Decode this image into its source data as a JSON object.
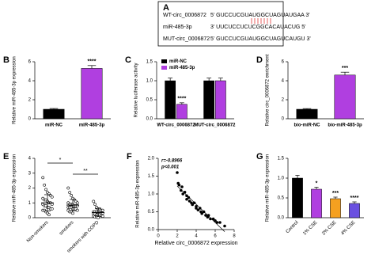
{
  "panel_a": {
    "panel": "A",
    "rows": [
      {
        "name": "WT-circ_0006872",
        "sequence": "5' GUCCUCGUAUGGCUAGUAUGAA 3'"
      },
      {
        "name": "miR-485-3p",
        "sequence": "3' UUCUCCUCUCGGCACAUACUG 5'"
      },
      {
        "name": "MUT-circ_0006872",
        "sequence": "5' GUCCUCGUAUGGCUAGUCAUGU 3'"
      }
    ]
  },
  "chart_data": [
    {
      "type": "bar",
      "panel": "B",
      "ylabel": "Relative miR-485-3p expression",
      "categories": [
        "miR-NC",
        "miR-485-3p"
      ],
      "values": [
        1.0,
        5.3
      ],
      "errors": [
        0.08,
        0.3
      ],
      "colors": [
        "#000000",
        "#b03fe0"
      ],
      "significance": [
        null,
        "****"
      ],
      "ylim": [
        0,
        6
      ],
      "yticks": [
        0,
        2,
        4,
        6
      ],
      "rotate_labels": false
    },
    {
      "type": "grouped_bar",
      "panel": "C",
      "ylabel": "Relative luciferase activity",
      "categories": [
        "WT-circ_0006872",
        "MUT-circ_0006872"
      ],
      "series": [
        {
          "name": "miR-NC",
          "color": "#000000",
          "values": [
            1.0,
            1.0
          ],
          "errors": [
            0.07,
            0.07
          ],
          "significance": [
            null,
            null
          ]
        },
        {
          "name": "miR-485-3p",
          "color": "#b03fe0",
          "values": [
            0.38,
            1.0
          ],
          "errors": [
            0.04,
            0.07
          ],
          "significance": [
            "****",
            null
          ]
        }
      ],
      "ylim": [
        0,
        1.5
      ],
      "yticks": [
        {
          "value": 0,
          "label": "0.0"
        },
        0.5,
        {
          "value": 1,
          "label": "1.0"
        },
        1.5
      ],
      "legend": "top-left"
    },
    {
      "type": "bar",
      "panel": "D",
      "ylabel": "Relative circ_0006872 enrichment",
      "categories": [
        "bio-miR-NC",
        "bio-miR-485-3p"
      ],
      "values": [
        1.0,
        4.6
      ],
      "errors": [
        0.07,
        0.3
      ],
      "colors": [
        "#000000",
        "#b03fe0"
      ],
      "significance": [
        null,
        "***"
      ],
      "ylim": [
        0,
        6
      ],
      "yticks": [
        0,
        2,
        4,
        6
      ],
      "rotate_labels": false
    },
    {
      "type": "strip",
      "panel": "E",
      "ylabel": "Relative miR-485-3p expression",
      "categories": [
        "Non-smokers",
        "smokers",
        "smokers with COPD"
      ],
      "groups": [
        {
          "values": [
            2.7,
            2.2,
            1.9,
            1.7,
            1.6,
            1.5,
            1.4,
            1.3,
            1.2,
            1.2,
            1.1,
            1.0,
            1.0,
            0.9,
            0.9,
            0.8,
            0.8,
            0.7,
            0.7,
            0.6,
            0.6,
            0.5,
            0.5,
            0.4,
            0.3,
            0.2
          ]
        },
        {
          "values": [
            2.0,
            1.7,
            1.5,
            1.3,
            1.2,
            1.1,
            1.0,
            1.0,
            0.9,
            0.9,
            0.9,
            0.8,
            0.8,
            0.8,
            0.7,
            0.7,
            0.7,
            0.6,
            0.6,
            0.6,
            0.5,
            0.5,
            0.4,
            0.4,
            0.3
          ]
        },
        {
          "values": [
            1.1,
            0.9,
            0.7,
            0.6,
            0.6,
            0.5,
            0.5,
            0.4,
            0.4,
            0.4,
            0.35,
            0.3,
            0.3,
            0.3,
            0.25,
            0.25,
            0.2,
            0.2,
            0.2,
            0.15,
            0.1,
            0.1,
            0.05,
            0.05,
            0.0
          ]
        }
      ],
      "means": [
        1.0,
        0.85,
        0.35
      ],
      "errors": [
        0.55,
        0.38,
        0.25
      ],
      "annotations": [
        "*",
        "**"
      ],
      "ylim": [
        0,
        4
      ],
      "yticks": [
        0,
        1,
        2,
        3,
        4
      ],
      "rotate_labels": true
    },
    {
      "type": "scatter",
      "panel": "F",
      "ylabel": "Relative miR-485-3p expression",
      "xlabel": "Relative circ_0006872 expression",
      "x": [
        2.0,
        2.1,
        2.2,
        2.4,
        2.5,
        2.6,
        2.8,
        3.0,
        3.0,
        3.2,
        3.3,
        3.5,
        3.6,
        3.8,
        4.0,
        4.0,
        4.2,
        4.4,
        4.5,
        4.6,
        4.8,
        5.0,
        5.2,
        5.3,
        5.5,
        5.8,
        6.0,
        6.2,
        6.5,
        7.0
      ],
      "y": [
        1.6,
        1.3,
        1.25,
        1.1,
        1.2,
        1.0,
        1.05,
        0.95,
        0.85,
        0.9,
        0.8,
        0.75,
        0.7,
        0.75,
        0.6,
        0.65,
        0.55,
        0.6,
        0.5,
        0.45,
        0.5,
        0.4,
        0.35,
        0.4,
        0.3,
        0.3,
        0.25,
        0.2,
        0.2,
        0.1
      ],
      "color": "#000000",
      "annotations": [
        "r=-0.8966",
        "p<0.001"
      ],
      "xlim": [
        0,
        8
      ],
      "xticks": [
        0,
        2,
        4,
        6,
        8
      ],
      "ylim": [
        0,
        2
      ],
      "yticks": [
        {
          "value": 0,
          "label": "0.0"
        },
        0.5,
        {
          "value": 1,
          "label": "1.0"
        },
        1.5,
        {
          "value": 2,
          "label": "2.0"
        }
      ]
    },
    {
      "type": "bar",
      "panel": "G",
      "ylabel": "Relative miR-485-3p expression",
      "categories": [
        "Control",
        "1% CSE",
        "2% CSE",
        "4% CSE"
      ],
      "values": [
        1.0,
        0.72,
        0.48,
        0.36
      ],
      "errors": [
        0.07,
        0.05,
        0.04,
        0.04
      ],
      "colors": [
        "#000000",
        "#b03fe0",
        "#f5a020",
        "#6a50e0"
      ],
      "significance": [
        null,
        "*",
        "***",
        "****"
      ],
      "ylim": [
        0,
        1.5
      ],
      "yticks": [
        {
          "value": 0,
          "label": "0.0"
        },
        0.5,
        {
          "value": 1,
          "label": "1.0"
        },
        1.5
      ],
      "rotate_labels": true
    }
  ]
}
